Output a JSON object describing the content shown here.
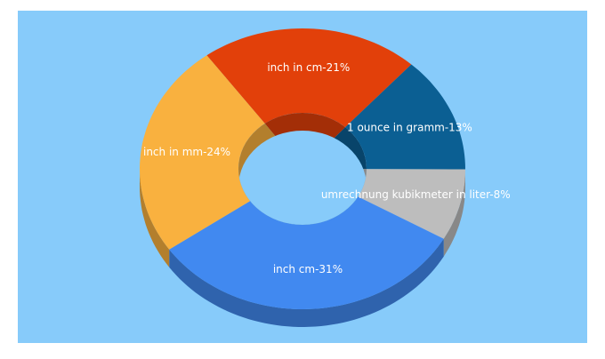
{
  "chart_data": {
    "type": "donut3d",
    "categories": [
      "inch in cm-21%",
      "1 ounce in gramm-13%",
      "umrechnung kubikmeter in liter-8%",
      "inch cm-31%",
      "inch in mm-24%"
    ],
    "values": [
      21,
      13,
      8,
      31,
      24
    ],
    "colors": [
      "#e2400a",
      "#0b5f93",
      "#bdbdbd",
      "#4189f0",
      "#f9b13f"
    ]
  }
}
